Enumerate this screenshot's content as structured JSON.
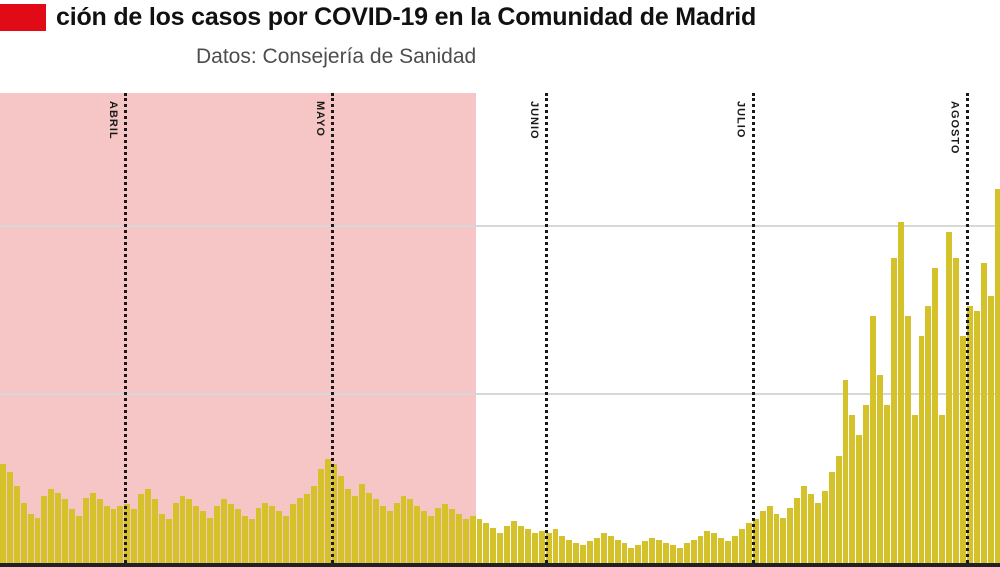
{
  "header": {
    "logo_color": "#e10a17",
    "title": "ción de los casos por COVID-19 en la Comunidad de Madrid",
    "subtitle": "Datos: Consejería de Sanidad"
  },
  "chart_data": {
    "type": "bar",
    "title": "ción de los casos por COVID-19 en la Comunidad de Madrid",
    "subtitle": "Datos: Consejería de Sanidad",
    "xlabel": "",
    "ylabel": "",
    "ylim": [
      0,
      1400
    ],
    "gridlines": [
      500,
      1000
    ],
    "grid_color": "#d7d7d7",
    "axis_color": "#222222",
    "bar_color": "#d5c22b",
    "month_line_color": "#181818",
    "legend": "none",
    "shaded_region": {
      "color": "#f5c6c5",
      "start_index": 0,
      "end_index": 69
    },
    "months": [
      {
        "label": "ABRIL",
        "index": 18
      },
      {
        "label": "MAYO",
        "index": 48
      },
      {
        "label": "JUNIO",
        "index": 79
      },
      {
        "label": "JULIO",
        "index": 109
      },
      {
        "label": "AGOSTO",
        "index": 140
      }
    ],
    "values": [
      295,
      270,
      230,
      180,
      145,
      135,
      200,
      220,
      210,
      190,
      160,
      140,
      195,
      210,
      190,
      170,
      160,
      170,
      175,
      160,
      205,
      220,
      190,
      145,
      130,
      180,
      200,
      190,
      170,
      155,
      135,
      170,
      190,
      175,
      160,
      140,
      130,
      165,
      180,
      170,
      155,
      140,
      175,
      195,
      205,
      230,
      280,
      310,
      295,
      260,
      220,
      200,
      235,
      210,
      190,
      170,
      155,
      180,
      200,
      190,
      170,
      155,
      140,
      165,
      175,
      160,
      145,
      130,
      140,
      130,
      120,
      105,
      90,
      110,
      125,
      110,
      100,
      90,
      95,
      90,
      100,
      80,
      70,
      60,
      55,
      65,
      75,
      90,
      80,
      70,
      60,
      45,
      55,
      65,
      75,
      70,
      60,
      55,
      45,
      60,
      70,
      80,
      95,
      90,
      75,
      65,
      80,
      100,
      120,
      130,
      155,
      170,
      145,
      135,
      165,
      195,
      230,
      205,
      180,
      215,
      270,
      320,
      545,
      440,
      380,
      470,
      735,
      560,
      470,
      910,
      1015,
      735,
      440,
      675,
      765,
      880,
      440,
      985,
      910,
      675,
      765,
      750,
      895,
      795,
      1115
    ]
  }
}
